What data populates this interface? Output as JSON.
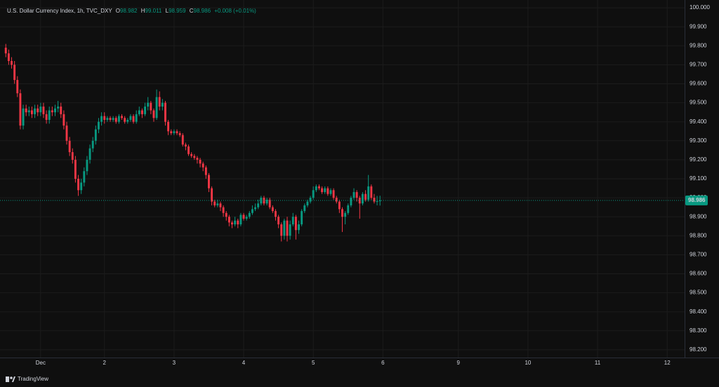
{
  "header": {
    "symbol": "U.S. Dollar Currency Index, 1h, TVC_DXY",
    "open_label": "O",
    "high_label": "H",
    "low_label": "L",
    "close_label": "C",
    "change": "+0.008 (+0.01%)"
  },
  "footer": {
    "brand": "TradingView"
  },
  "chart_data": {
    "type": "candlestick",
    "up_color": "#089981",
    "down_color": "#f23645",
    "grid": true,
    "open": [
      99.79,
      99.76,
      99.72,
      99.7,
      99.62,
      99.55,
      99.38,
      99.47,
      99.45,
      99.46,
      99.44,
      99.47,
      99.45,
      99.48,
      99.44,
      99.41,
      99.46,
      99.45,
      99.47,
      99.48,
      99.44,
      99.38,
      99.3,
      99.24,
      99.2,
      99.1,
      99.04,
      99.08,
      99.14,
      99.2,
      99.26,
      99.3,
      99.36,
      99.4,
      99.43,
      99.41,
      99.42,
      99.41,
      99.42,
      99.4,
      99.43,
      99.42,
      99.4,
      99.41,
      99.43,
      99.4,
      99.44,
      99.46,
      99.44,
      99.48,
      99.5,
      99.46,
      99.42,
      99.53,
      99.48,
      99.5,
      99.4,
      99.35,
      99.34,
      99.35,
      99.34,
      99.33,
      99.28,
      99.27,
      99.23,
      99.22,
      99.21,
      99.2,
      99.18,
      99.16,
      99.12,
      99.05,
      98.98,
      98.96,
      98.97,
      98.95,
      98.92,
      98.9,
      98.87,
      98.86,
      98.88,
      98.86,
      98.91,
      98.89,
      98.9,
      98.92,
      98.94,
      98.95,
      98.97,
      99.0,
      98.97,
      98.99,
      98.95,
      98.93,
      98.9,
      98.86,
      98.8,
      98.88,
      98.8,
      98.86,
      98.9,
      98.83,
      98.86,
      98.93,
      98.96,
      98.98,
      99.0,
      99.04,
      99.06,
      99.05,
      99.03,
      99.05,
      99.02,
      99.04,
      99.0,
      98.98,
      98.94,
      98.9,
      98.92,
      98.96,
      99.0,
      99.03,
      99.0,
      98.97,
      99.02,
      98.99,
      99.06,
      99.0,
      98.98,
      98.982
    ],
    "high": [
      99.81,
      99.78,
      99.74,
      99.72,
      99.64,
      99.57,
      99.49,
      99.49,
      99.48,
      99.48,
      99.49,
      99.49,
      99.5,
      99.5,
      99.46,
      99.48,
      99.48,
      99.49,
      99.51,
      99.5,
      99.46,
      99.4,
      99.32,
      99.26,
      99.22,
      99.12,
      99.1,
      99.16,
      99.22,
      99.28,
      99.32,
      99.38,
      99.42,
      99.45,
      99.45,
      99.43,
      99.43,
      99.43,
      99.43,
      99.44,
      99.44,
      99.43,
      99.42,
      99.44,
      99.44,
      99.46,
      99.48,
      99.47,
      99.5,
      99.53,
      99.51,
      99.47,
      99.57,
      99.56,
      99.52,
      99.51,
      99.41,
      99.36,
      99.36,
      99.36,
      99.35,
      99.34,
      99.29,
      99.28,
      99.24,
      99.23,
      99.22,
      99.21,
      99.19,
      99.17,
      99.13,
      99.06,
      98.99,
      98.99,
      98.98,
      98.96,
      98.93,
      98.91,
      98.88,
      98.9,
      98.89,
      98.92,
      98.92,
      98.91,
      98.93,
      98.96,
      98.97,
      98.99,
      99.01,
      99.01,
      99.0,
      99.0,
      98.96,
      98.94,
      98.91,
      98.87,
      98.89,
      98.9,
      98.88,
      98.92,
      98.91,
      98.88,
      98.94,
      98.97,
      98.99,
      99.01,
      99.06,
      99.07,
      99.07,
      99.06,
      99.06,
      99.06,
      99.05,
      99.05,
      99.01,
      98.99,
      98.95,
      98.93,
      98.97,
      99.01,
      99.05,
      99.04,
      99.01,
      99.03,
      99.04,
      99.12,
      99.07,
      99.02,
      99.01,
      99.011
    ],
    "low": [
      99.74,
      99.7,
      99.68,
      99.6,
      99.53,
      99.36,
      99.36,
      99.43,
      99.43,
      99.42,
      99.42,
      99.43,
      99.43,
      99.42,
      99.39,
      99.39,
      99.43,
      99.43,
      99.45,
      99.42,
      99.36,
      99.28,
      99.22,
      99.18,
      99.08,
      99.01,
      99.02,
      99.06,
      99.12,
      99.18,
      99.24,
      99.28,
      99.34,
      99.38,
      99.39,
      99.4,
      99.4,
      99.4,
      99.39,
      99.39,
      99.41,
      99.39,
      99.39,
      99.4,
      99.39,
      99.39,
      99.43,
      99.42,
      99.43,
      99.46,
      99.44,
      99.4,
      99.41,
      99.46,
      99.46,
      99.38,
      99.33,
      99.33,
      99.33,
      99.33,
      99.32,
      99.27,
      99.25,
      99.22,
      99.21,
      99.2,
      99.18,
      99.16,
      99.14,
      99.1,
      99.03,
      98.96,
      98.95,
      98.95,
      98.93,
      98.9,
      98.88,
      98.85,
      98.84,
      98.85,
      98.84,
      98.85,
      98.88,
      98.88,
      98.89,
      98.91,
      98.93,
      98.94,
      98.96,
      98.96,
      98.96,
      98.94,
      98.92,
      98.88,
      98.84,
      98.77,
      98.78,
      98.77,
      98.78,
      98.85,
      98.78,
      98.81,
      98.85,
      98.92,
      98.95,
      98.97,
      98.99,
      99.03,
      99.04,
      99.02,
      99.02,
      99.01,
      99.01,
      98.99,
      98.97,
      98.92,
      98.82,
      98.86,
      98.91,
      98.95,
      98.99,
      98.98,
      98.89,
      98.96,
      98.98,
      98.98,
      98.99,
      98.97,
      98.96,
      98.959
    ],
    "close": [
      99.76,
      99.72,
      99.7,
      99.62,
      99.55,
      99.38,
      99.47,
      99.45,
      99.46,
      99.44,
      99.47,
      99.45,
      99.48,
      99.44,
      99.41,
      99.46,
      99.45,
      99.47,
      99.48,
      99.44,
      99.38,
      99.3,
      99.24,
      99.2,
      99.1,
      99.04,
      99.08,
      99.14,
      99.2,
      99.26,
      99.3,
      99.36,
      99.4,
      99.43,
      99.41,
      99.42,
      99.41,
      99.42,
      99.4,
      99.43,
      99.42,
      99.4,
      99.41,
      99.43,
      99.4,
      99.44,
      99.46,
      99.44,
      99.48,
      99.5,
      99.46,
      99.42,
      99.53,
      99.48,
      99.5,
      99.4,
      99.35,
      99.34,
      99.35,
      99.34,
      99.33,
      99.28,
      99.27,
      99.23,
      99.22,
      99.21,
      99.2,
      99.18,
      99.16,
      99.12,
      99.05,
      98.98,
      98.96,
      98.97,
      98.95,
      98.92,
      98.9,
      98.87,
      98.86,
      98.88,
      98.86,
      98.91,
      98.89,
      98.9,
      98.92,
      98.94,
      98.95,
      98.97,
      99.0,
      98.97,
      98.99,
      98.95,
      98.93,
      98.9,
      98.86,
      98.8,
      98.88,
      98.8,
      98.86,
      98.9,
      98.83,
      98.86,
      98.93,
      98.96,
      98.98,
      99.0,
      99.04,
      99.06,
      99.05,
      99.03,
      99.05,
      99.02,
      99.04,
      99.0,
      98.98,
      98.94,
      98.9,
      98.92,
      98.96,
      99.0,
      99.03,
      99.0,
      98.97,
      99.02,
      98.99,
      99.06,
      99.0,
      98.98,
      98.982,
      98.986
    ],
    "xlim": [
      -2,
      234
    ],
    "xticks": [
      {
        "value": 12,
        "label": "Dec"
      },
      {
        "value": 34,
        "label": "2"
      },
      {
        "value": 58,
        "label": "3"
      },
      {
        "value": 82,
        "label": "4"
      },
      {
        "value": 106,
        "label": "5"
      },
      {
        "value": 130,
        "label": "6"
      },
      {
        "value": 156,
        "label": "9"
      },
      {
        "value": 180,
        "label": "10"
      },
      {
        "value": 204,
        "label": "11"
      },
      {
        "value": 228,
        "label": "12"
      }
    ],
    "ylim": [
      98.159,
      100.041
    ],
    "yticks": [
      {
        "value": 98.2,
        "label": "98.200"
      },
      {
        "value": 98.3,
        "label": "98.300"
      },
      {
        "value": 98.4,
        "label": "98.400"
      },
      {
        "value": 98.5,
        "label": "98.500"
      },
      {
        "value": 98.6,
        "label": "98.600"
      },
      {
        "value": 98.7,
        "label": "98.700"
      },
      {
        "value": 98.8,
        "label": "98.800"
      },
      {
        "value": 98.9,
        "label": "98.900"
      },
      {
        "value": 99.0,
        "label": "99.000"
      },
      {
        "value": 99.1,
        "label": "99.100"
      },
      {
        "value": 99.2,
        "label": "99.200"
      },
      {
        "value": 99.3,
        "label": "99.300"
      },
      {
        "value": 99.4,
        "label": "99.400"
      },
      {
        "value": 99.5,
        "label": "99.500"
      },
      {
        "value": 99.6,
        "label": "99.600"
      },
      {
        "value": 99.7,
        "label": "99.700"
      },
      {
        "value": 99.8,
        "label": "99.800"
      },
      {
        "value": 99.9,
        "label": "99.900"
      },
      {
        "value": 100.0,
        "label": "100.000"
      }
    ]
  }
}
